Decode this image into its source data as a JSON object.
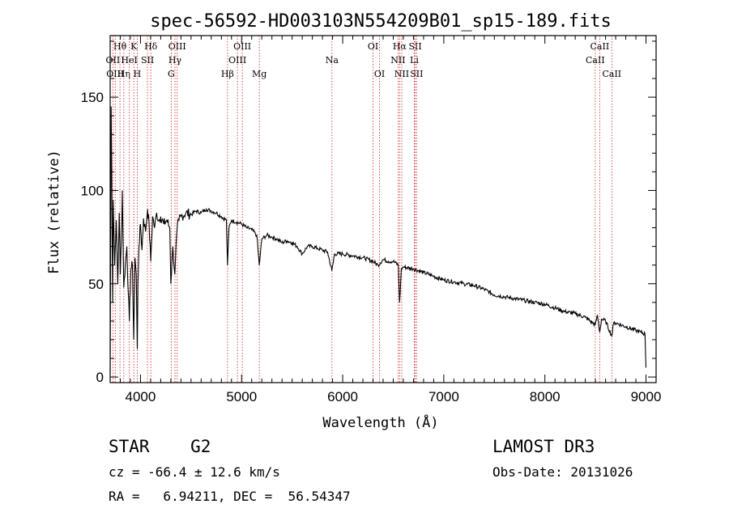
{
  "chart_data": {
    "type": "line",
    "title": "spec-56592-HD003103N554209B01_sp15-189.fits",
    "xlabel": "Wavelength (Å)",
    "ylabel": "Flux (relative)",
    "xlim": [
      3700,
      9100
    ],
    "ylim": [
      -3,
      183
    ],
    "xticks": [
      4000,
      5000,
      6000,
      7000,
      8000,
      9000
    ],
    "yticks": [
      0,
      50,
      100,
      150
    ],
    "series": [
      {
        "name": "spectrum",
        "x": [
          3700,
          3710,
          3725,
          3730,
          3745,
          3760,
          3775,
          3790,
          3800,
          3810,
          3820,
          3835,
          3850,
          3865,
          3880,
          3890,
          3905,
          3920,
          3933,
          3945,
          3958,
          3968,
          3975,
          3985,
          4000,
          4015,
          4030,
          4050,
          4070,
          4085,
          4101,
          4120,
          4140,
          4160,
          4180,
          4200,
          4230,
          4260,
          4290,
          4300,
          4320,
          4340,
          4360,
          4380,
          4400,
          4450,
          4500,
          4550,
          4600,
          4650,
          4700,
          4750,
          4800,
          4850,
          4861,
          4875,
          4900,
          4950,
          5000,
          5050,
          5100,
          5150,
          5175,
          5200,
          5250,
          5300,
          5350,
          5400,
          5450,
          5500,
          5550,
          5600,
          5650,
          5700,
          5750,
          5800,
          5850,
          5893,
          5920,
          6000,
          6100,
          6200,
          6300,
          6350,
          6400,
          6450,
          6500,
          6550,
          6563,
          6580,
          6600,
          6700,
          6800,
          6900,
          7000,
          7100,
          7200,
          7300,
          7400,
          7500,
          7600,
          7700,
          7800,
          7900,
          8000,
          8100,
          8200,
          8300,
          8400,
          8498,
          8520,
          8542,
          8560,
          8600,
          8662,
          8680,
          8700,
          8800,
          8900,
          8950,
          8990,
          9000
        ],
        "values": [
          2,
          145,
          40,
          95,
          60,
          84,
          50,
          88,
          55,
          72,
          100,
          48,
          60,
          70,
          44,
          30,
          58,
          60,
          20,
          64,
          55,
          15,
          50,
          70,
          82,
          68,
          85,
          78,
          90,
          82,
          62,
          86,
          80,
          88,
          84,
          86,
          82,
          84,
          80,
          50,
          70,
          55,
          78,
          84,
          86,
          88,
          87,
          89,
          88,
          90,
          89,
          88,
          86,
          84,
          60,
          80,
          84,
          83,
          82,
          80,
          79,
          76,
          60,
          74,
          76,
          75,
          74,
          72,
          73,
          72,
          70,
          66,
          70,
          70,
          69,
          68,
          67,
          57,
          66,
          66,
          65,
          64,
          62,
          60,
          63,
          62,
          62,
          60,
          40,
          58,
          59,
          58,
          56,
          54,
          52,
          51,
          50,
          49,
          47,
          44,
          43,
          42,
          41,
          40,
          39,
          37,
          35,
          34,
          32,
          28,
          33,
          24,
          31,
          30,
          22,
          29,
          29,
          27,
          25,
          24,
          23,
          5
        ]
      }
    ],
    "lines": [
      {
        "name": "Hθ",
        "x": 3797,
        "row": 0
      },
      {
        "name": "OII",
        "x": 3727,
        "row": 1
      },
      {
        "name": "OIII",
        "x": 3750,
        "row": 2
      },
      {
        "name": "Hη",
        "x": 3835,
        "row": 2
      },
      {
        "name": "K",
        "x": 3934,
        "row": 0
      },
      {
        "name": "HeI",
        "x": 3889,
        "row": 1
      },
      {
        "name": "SII",
        "x": 4069,
        "row": 1
      },
      {
        "name": "H",
        "x": 3968,
        "row": 2
      },
      {
        "name": "Hδ",
        "x": 4102,
        "row": 0
      },
      {
        "name": "OIII",
        "x": 4363,
        "row": 0
      },
      {
        "name": "Hγ",
        "x": 4341,
        "row": 1
      },
      {
        "name": "G",
        "x": 4304,
        "row": 2
      },
      {
        "name": "Hβ",
        "x": 4861,
        "row": 2
      },
      {
        "name": "OIII",
        "x": 5007,
        "row": 0
      },
      {
        "name": "OIII",
        "x": 4959,
        "row": 1
      },
      {
        "name": "Mg",
        "x": 5175,
        "row": 2
      },
      {
        "name": "Na",
        "x": 5894,
        "row": 1
      },
      {
        "name": "OI",
        "x": 6300,
        "row": 0
      },
      {
        "name": "OI",
        "x": 6364,
        "row": 2
      },
      {
        "name": "Hα",
        "x": 6563,
        "row": 0
      },
      {
        "name": "SII",
        "x": 6717,
        "row": 0
      },
      {
        "name": "NII",
        "x": 6548,
        "row": 1
      },
      {
        "name": "Li",
        "x": 6708,
        "row": 1
      },
      {
        "name": "NII",
        "x": 6584,
        "row": 2
      },
      {
        "name": "SII",
        "x": 6731,
        "row": 2
      },
      {
        "name": "CaII",
        "x": 8542,
        "row": 0
      },
      {
        "name": "CaII",
        "x": 8498,
        "row": 1
      },
      {
        "name": "CaII",
        "x": 8662,
        "row": 2
      }
    ]
  },
  "info": {
    "class_line": "STAR    G2",
    "survey": "LAMOST DR3",
    "redshift": "cz = -66.4 ± 12.6 km/s",
    "obs_date": "Obs-Date: 20131026",
    "coords": "RA =   6.94211, DEC =  56.54347"
  },
  "colors": {
    "spectrum": "#000000",
    "line_marker": "#d02020",
    "axes": "#000000"
  }
}
